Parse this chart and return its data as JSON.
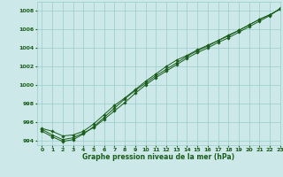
{
  "title": "Graphe pression niveau de la mer (hPa)",
  "bg_color": "#cce8e8",
  "grid_color": "#99cccc",
  "line_color": "#1a5c1a",
  "xlim": [
    -0.5,
    23
  ],
  "ylim": [
    993.5,
    1009.0
  ],
  "yticks": [
    994,
    996,
    998,
    1000,
    1002,
    1004,
    1006,
    1008
  ],
  "xticks": [
    0,
    1,
    2,
    3,
    4,
    5,
    6,
    7,
    8,
    9,
    10,
    11,
    12,
    13,
    14,
    15,
    16,
    17,
    18,
    19,
    20,
    21,
    22,
    23
  ],
  "series1": [
    995.2,
    994.6,
    994.1,
    994.3,
    994.8,
    995.4,
    996.3,
    997.2,
    998.1,
    999.1,
    1000.0,
    1000.8,
    1001.5,
    1002.2,
    1002.9,
    1003.5,
    1004.0,
    1004.6,
    1005.1,
    1005.7,
    1006.3,
    1006.9,
    1007.5,
    1008.3
  ],
  "series2": [
    995.0,
    994.4,
    993.9,
    994.1,
    994.7,
    995.5,
    996.5,
    997.5,
    998.5,
    999.4,
    1000.2,
    1001.0,
    1001.7,
    1002.4,
    1003.1,
    1003.7,
    1004.2,
    1004.8,
    1005.3,
    1005.9,
    1006.5,
    1007.1,
    1007.6,
    1008.2
  ],
  "series3": [
    995.3,
    995.0,
    994.5,
    994.6,
    995.0,
    995.8,
    996.8,
    997.8,
    998.6,
    999.5,
    1000.4,
    1001.2,
    1002.0,
    1002.7,
    1003.2,
    1003.8,
    1004.3,
    1004.8,
    1005.4,
    1005.9,
    1006.5,
    1007.1,
    1007.6,
    1008.2
  ]
}
